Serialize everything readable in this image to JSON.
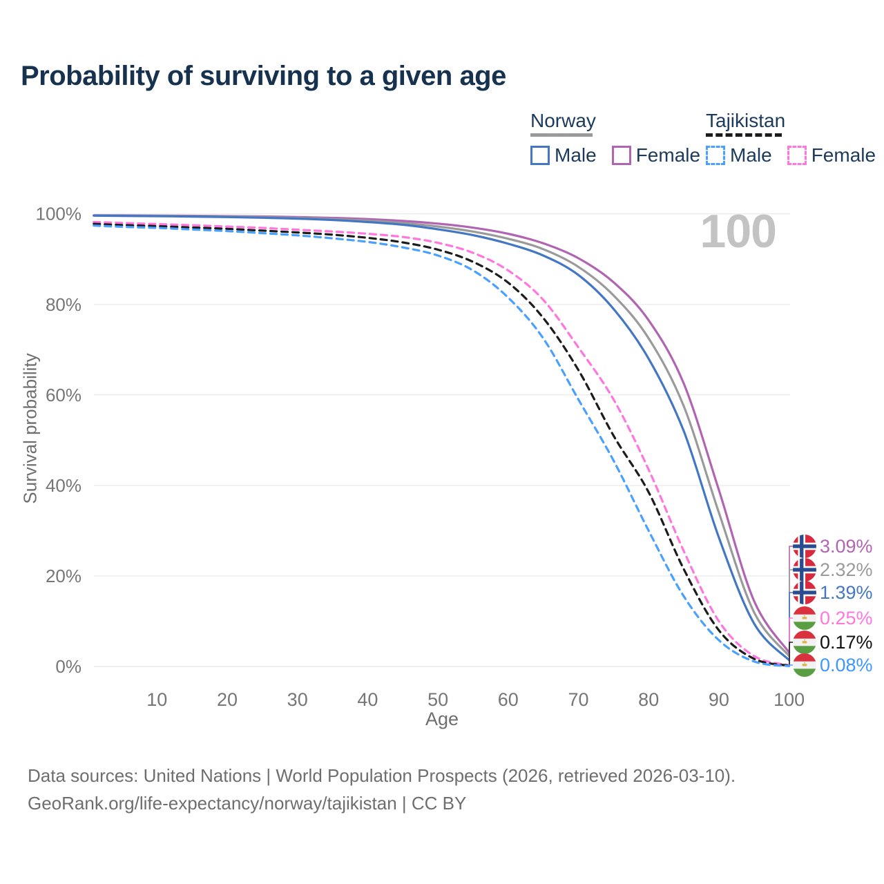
{
  "title": "Probability of surviving to a given age",
  "watermark_age": "100",
  "legend": {
    "groups": [
      {
        "country": "Norway",
        "line_style": "solid",
        "items": [
          {
            "label": "Male"
          },
          {
            "label": "Female"
          }
        ]
      },
      {
        "country": "Tajikistan",
        "line_style": "dashed",
        "items": [
          {
            "label": "Male"
          },
          {
            "label": "Female"
          }
        ]
      }
    ]
  },
  "chart_data": {
    "type": "line",
    "title": "Probability of surviving to a given age",
    "xlabel": "Age",
    "ylabel": "Survival probability",
    "xlim": [
      1,
      100
    ],
    "ylim": [
      0,
      100
    ],
    "grid": "horizontal-only",
    "legend_position": "top-right",
    "xtick_values": [
      10,
      20,
      30,
      40,
      50,
      60,
      70,
      80,
      90,
      100
    ],
    "xtick_labels": [
      "10",
      "20",
      "30",
      "40",
      "50",
      "60",
      "70",
      "80",
      "90",
      "100"
    ],
    "ytick_values": [
      0,
      20,
      40,
      60,
      80,
      100
    ],
    "ytick_labels": [
      "0%",
      "20%",
      "40%",
      "60%",
      "80%",
      "100%"
    ],
    "x": [
      1,
      5,
      10,
      15,
      20,
      25,
      30,
      35,
      40,
      45,
      50,
      55,
      60,
      65,
      70,
      75,
      80,
      85,
      90,
      95,
      100
    ],
    "series": [
      {
        "name": "Norway Female",
        "country": "Norway",
        "sex": "Female",
        "color": "#b164b1",
        "dashed": false,
        "values": [
          99.7,
          99.67,
          99.62,
          99.57,
          99.5,
          99.42,
          99.3,
          99.12,
          98.85,
          98.45,
          97.85,
          96.95,
          95.6,
          93.5,
          90.2,
          84.9,
          76.5,
          62.5,
          39.0,
          14.5,
          3.09
        ],
        "end_value_pct": 3.09
      },
      {
        "name": "Norway Both sexes",
        "country": "Norway",
        "sex": "Both",
        "color": "#9a9a9a",
        "dashed": false,
        "values": [
          99.65,
          99.6,
          99.55,
          99.48,
          99.4,
          99.28,
          99.1,
          98.85,
          98.5,
          98.0,
          97.2,
          96.1,
          94.5,
          92.2,
          88.3,
          82.0,
          72.5,
          57.5,
          34.0,
          12.0,
          2.32
        ],
        "end_value_pct": 2.32
      },
      {
        "name": "Norway Male",
        "country": "Norway",
        "sex": "Male",
        "color": "#4377c4",
        "dashed": false,
        "values": [
          99.6,
          99.55,
          99.5,
          99.4,
          99.3,
          99.15,
          98.95,
          98.65,
          98.2,
          97.6,
          96.6,
          95.3,
          93.4,
          90.8,
          86.5,
          79.0,
          68.0,
          52.0,
          28.5,
          9.5,
          1.39
        ],
        "end_value_pct": 1.39
      },
      {
        "name": "Tajikistan Female",
        "country": "Tajikistan",
        "sex": "Female",
        "color": "#ff77dd",
        "dashed": true,
        "values": [
          98.2,
          98.0,
          97.75,
          97.5,
          97.2,
          96.9,
          96.5,
          96.1,
          95.6,
          94.9,
          93.6,
          91.4,
          87.5,
          81.0,
          70.5,
          59.0,
          43.5,
          25.5,
          10.0,
          2.3,
          0.25
        ],
        "end_value_pct": 0.25
      },
      {
        "name": "Tajikistan Both sexes",
        "country": "Tajikistan",
        "sex": "Both",
        "color": "#1c1c1c",
        "dashed": true,
        "values": [
          97.8,
          97.55,
          97.3,
          97.0,
          96.7,
          96.3,
          95.9,
          95.4,
          94.7,
          93.7,
          92.1,
          89.4,
          84.8,
          77.0,
          65.5,
          51.0,
          38.5,
          21.5,
          8.0,
          1.7,
          0.17
        ],
        "end_value_pct": 0.17
      },
      {
        "name": "Tajikistan Male",
        "country": "Tajikistan",
        "sex": "Male",
        "color": "#49a0ff",
        "dashed": true,
        "values": [
          97.4,
          97.15,
          96.9,
          96.55,
          96.2,
          95.75,
          95.25,
          94.6,
          93.8,
          92.6,
          90.8,
          87.5,
          81.5,
          72.5,
          59.0,
          45.5,
          30.0,
          15.5,
          5.8,
          1.1,
          0.08
        ],
        "end_value_pct": 0.08
      }
    ],
    "end_labels": [
      {
        "text": "3.09%",
        "color": "#b164b1",
        "flag": "norway"
      },
      {
        "text": "2.32%",
        "color": "#9a9a9a",
        "flag": "norway"
      },
      {
        "text": "1.39%",
        "color": "#4377c4",
        "flag": "norway"
      },
      {
        "text": "0.25%",
        "color": "#ff77dd",
        "flag": "tajikistan"
      },
      {
        "text": "0.17%",
        "color": "#111111",
        "flag": "tajikistan"
      },
      {
        "text": "0.08%",
        "color": "#3e97ff",
        "flag": "tajikistan"
      }
    ]
  },
  "footer": {
    "line1": "Data sources: United Nations | World Population Prospects (2026, retrieved 2026-03-10).",
    "line2": "GeoRank.org/life-expectancy/norway/tajikistan | CC BY"
  }
}
